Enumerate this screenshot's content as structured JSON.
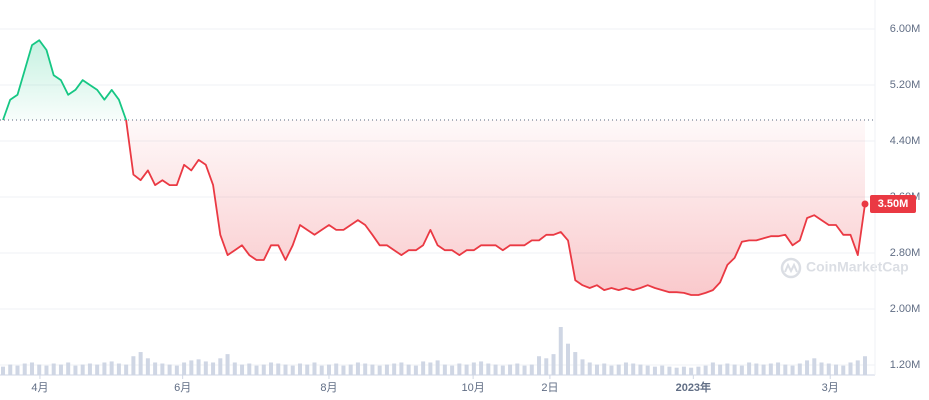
{
  "chart_data": {
    "type": "line",
    "series": [
      {
        "color_up": "#16c784",
        "color": "#ea3943",
        "values": [
          4700000,
          4990000,
          5060000,
          5410000,
          5770000,
          5840000,
          5700000,
          5340000,
          5270000,
          5060000,
          5130000,
          5270000,
          5200000,
          5130000,
          4990000,
          5130000,
          4990000,
          4700000,
          3920000,
          3840000,
          3980000,
          3770000,
          3840000,
          3770000,
          3770000,
          4060000,
          3980000,
          4130000,
          4060000,
          3770000,
          3060000,
          2770000,
          2840000,
          2910000,
          2770000,
          2700000,
          2700000,
          2910000,
          2910000,
          2700000,
          2910000,
          3200000,
          3130000,
          3060000,
          3130000,
          3200000,
          3130000,
          3130000,
          3200000,
          3270000,
          3200000,
          3060000,
          2910000,
          2910000,
          2840000,
          2770000,
          2840000,
          2840000,
          2910000,
          3130000,
          2910000,
          2840000,
          2840000,
          2770000,
          2840000,
          2840000,
          2910000,
          2910000,
          2910000,
          2840000,
          2910000,
          2910000,
          2910000,
          2980000,
          2980000,
          3060000,
          3060000,
          3100000,
          2980000,
          2410000,
          2340000,
          2300000,
          2340000,
          2270000,
          2300000,
          2270000,
          2300000,
          2270000,
          2300000,
          2340000,
          2300000,
          2270000,
          2240000,
          2240000,
          2230000,
          2200000,
          2200000,
          2230000,
          2270000,
          2380000,
          2630000,
          2730000,
          2960000,
          2980000,
          2980000,
          3010000,
          3040000,
          3040000,
          3060000,
          2910000,
          2980000,
          3300000,
          3340000,
          3270000,
          3200000,
          3200000,
          3060000,
          3060000,
          2770000,
          3500000
        ]
      }
    ],
    "volume": {
      "color": "#cfd6e4",
      "values": [
        8,
        10,
        9,
        11,
        12,
        10,
        9,
        11,
        10,
        12,
        9,
        10,
        11,
        10,
        12,
        13,
        11,
        10,
        18,
        22,
        16,
        12,
        11,
        10,
        9,
        12,
        14,
        15,
        13,
        12,
        16,
        20,
        12,
        10,
        11,
        9,
        10,
        12,
        11,
        10,
        9,
        11,
        10,
        12,
        9,
        10,
        11,
        9,
        10,
        12,
        11,
        10,
        9,
        10,
        11,
        12,
        10,
        9,
        13,
        12,
        14,
        10,
        9,
        11,
        10,
        12,
        13,
        11,
        10,
        9,
        10,
        11,
        9,
        10,
        18,
        16,
        20,
        46,
        30,
        22,
        15,
        12,
        10,
        11,
        9,
        10,
        12,
        11,
        10,
        9,
        8,
        9,
        8,
        7,
        8,
        7,
        8,
        9,
        12,
        10,
        11,
        10,
        9,
        12,
        11,
        10,
        11,
        12,
        10,
        9,
        11,
        14,
        16,
        12,
        11,
        10,
        9,
        12,
        14,
        18
      ]
    },
    "baseline": 4700000,
    "current_label": "3.50M",
    "xlim": [
      0,
      119
    ],
    "xticks": [
      {
        "value": 5.1,
        "label": "4月"
      },
      {
        "value": 24.8,
        "label": "6月"
      },
      {
        "value": 45,
        "label": "8月"
      },
      {
        "value": 64.9,
        "label": "10月"
      },
      {
        "value": 75.5,
        "label": "2日"
      },
      {
        "value": 95.3,
        "label": "2023年"
      },
      {
        "value": 114.2,
        "label": "3月"
      }
    ],
    "ylim": [
      1057000,
      6414000
    ],
    "yticks": [
      {
        "value": 1200000,
        "label": "1.20M"
      },
      {
        "value": 2000000,
        "label": "2.00M"
      },
      {
        "value": 2800000,
        "label": "2.80M"
      },
      {
        "value": 3600000,
        "label": "3.60M"
      },
      {
        "value": 4400000,
        "label": "4.40M"
      },
      {
        "value": 5200000,
        "label": "5.20M"
      },
      {
        "value": 6000000,
        "label": "6.00M"
      }
    ],
    "grid": true,
    "watermark": "CoinMarketCap"
  }
}
